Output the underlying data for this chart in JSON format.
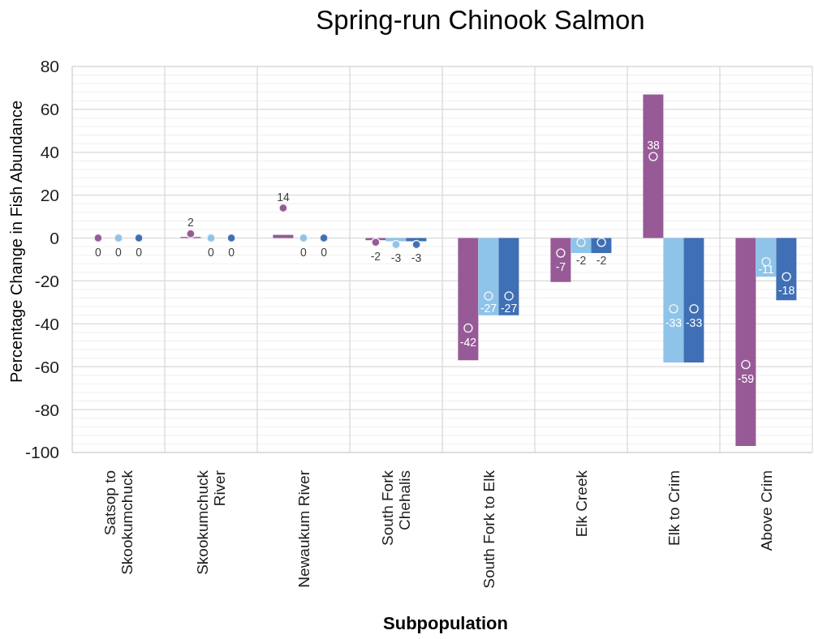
{
  "chart_data": {
    "type": "bar",
    "title": "Spring-run Chinook Salmon",
    "xlabel": "Subpopulation",
    "ylabel": "Percentage Change in Fish Abundance",
    "categories": [
      "Satsop to Skookumchuck",
      "Skookumchuck River",
      "Newaukum River",
      "South Fork Chehalis",
      "South Fork to Elk",
      "Elk Creek",
      "Elk to Crim",
      "Above Crim"
    ],
    "series": [
      {
        "color": "#975a97",
        "values": [
          0,
          0.5,
          1.5,
          -1,
          -57,
          -20.5,
          67,
          -97
        ]
      },
      {
        "color": "#8ec4e9",
        "values": [
          0,
          0,
          0,
          -1.5,
          -36,
          -7,
          -58,
          -18
        ]
      },
      {
        "color": "#3f6fb5",
        "values": [
          0,
          0,
          0,
          -1.5,
          -36,
          -7,
          -58,
          -29
        ]
      },
      {
        "type": "scatter",
        "color": "#975a97",
        "values": [
          0,
          2,
          14,
          -2,
          -42,
          -7,
          38,
          -59
        ],
        "value_labels": [
          "0",
          "2",
          "14",
          "-2",
          "-42",
          "-7",
          "38",
          "-59"
        ]
      },
      {
        "type": "scatter",
        "color": "#8ec4e9",
        "values": [
          0,
          0,
          0,
          -3,
          -27,
          -2,
          -33,
          -11
        ],
        "value_labels": [
          "0",
          "0",
          "0",
          "-3",
          "-27",
          "-2",
          "-33",
          "-11"
        ]
      },
      {
        "type": "scatter",
        "color": "#3f6fb5",
        "values": [
          0,
          0,
          0,
          -3,
          -27,
          -2,
          -33,
          -18
        ],
        "value_labels": [
          "0",
          "0",
          "0",
          "-3",
          "-27",
          "-2",
          "-33",
          "-18"
        ]
      }
    ],
    "ylim": [
      -100,
      80
    ],
    "yticks": [
      -100,
      {
        "value": -96,
        "label": null
      },
      {
        "value": -92,
        "label": null
      },
      {
        "value": -88,
        "label": null
      },
      {
        "value": -84,
        "label": null
      },
      -80,
      {
        "value": -76,
        "label": null
      },
      {
        "value": -72,
        "label": null
      },
      {
        "value": -68,
        "label": null
      },
      {
        "value": -64,
        "label": null
      },
      -60,
      {
        "value": -56,
        "label": null
      },
      {
        "value": -52,
        "label": null
      },
      {
        "value": -48,
        "label": null
      },
      {
        "value": -44,
        "label": null
      },
      -40,
      {
        "value": -36,
        "label": null
      },
      {
        "value": -32,
        "label": null
      },
      {
        "value": -28,
        "label": null
      },
      {
        "value": -24,
        "label": null
      },
      -20,
      {
        "value": -16,
        "label": null
      },
      {
        "value": -12,
        "label": null
      },
      {
        "value": -8,
        "label": null
      },
      {
        "value": -4,
        "label": null
      },
      0,
      {
        "value": 4,
        "label": null
      },
      {
        "value": 8,
        "label": null
      },
      {
        "value": 12,
        "label": null
      },
      {
        "value": 16,
        "label": null
      },
      20,
      {
        "value": 24,
        "label": null
      },
      {
        "value": 28,
        "label": null
      },
      {
        "value": 32,
        "label": null
      },
      {
        "value": 36,
        "label": null
      },
      40,
      {
        "value": 44,
        "label": null
      },
      {
        "value": 48,
        "label": null
      },
      {
        "value": 52,
        "label": null
      },
      {
        "value": 56,
        "label": null
      },
      60,
      {
        "value": 64,
        "label": null
      },
      {
        "value": 68,
        "label": null
      },
      {
        "value": 72,
        "label": null
      },
      {
        "value": 76,
        "label": null
      },
      80
    ],
    "grid": true,
    "marker": "circle"
  }
}
